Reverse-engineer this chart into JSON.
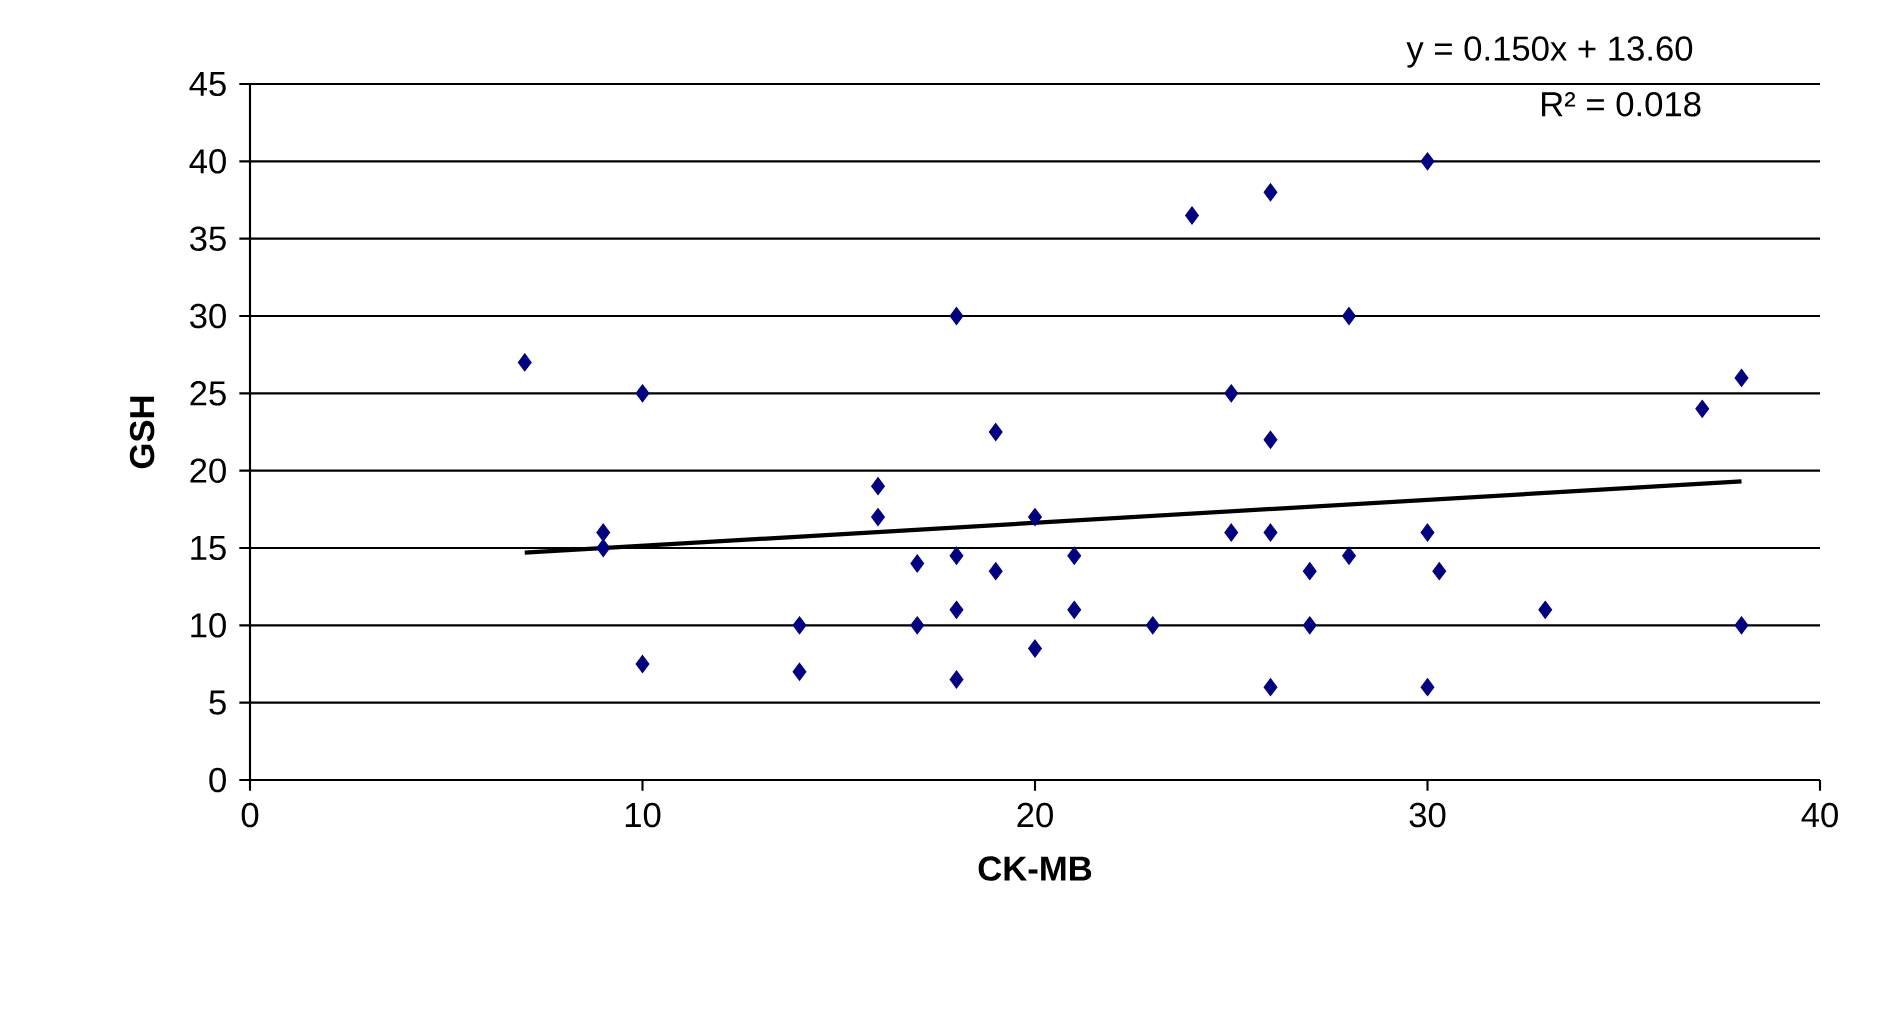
{
  "chart_data": {
    "type": "scatter",
    "xlabel": "CK-MB",
    "ylabel": "GSH",
    "xlim": [
      0,
      40
    ],
    "xticks": [
      0,
      10,
      20,
      30,
      40
    ],
    "ylim": [
      0,
      45
    ],
    "yticks": [
      0,
      5,
      10,
      15,
      20,
      25,
      30,
      35,
      40,
      45
    ],
    "grid": "y",
    "annotations": [
      "y = 0.150x + 13.60",
      "R² = 0.018"
    ],
    "series": [
      {
        "type": "scatter",
        "color": "#000080",
        "marker": "diamond",
        "x": [
          7,
          9,
          9,
          10,
          10,
          14,
          14,
          16,
          16,
          17,
          17,
          18,
          18,
          18,
          18,
          19,
          19,
          20,
          20,
          21,
          21,
          23,
          24,
          25,
          25,
          26,
          26,
          26,
          26,
          27,
          27,
          28,
          28,
          30,
          30,
          30,
          30.3,
          33,
          37,
          38,
          38
        ],
        "values": [
          27,
          16,
          15,
          25,
          7.5,
          10,
          7,
          19,
          17,
          14,
          10,
          30,
          14.5,
          11,
          6.5,
          22.5,
          13.5,
          17,
          8.5,
          14.5,
          11,
          10,
          36.5,
          25,
          16,
          38,
          22,
          16,
          6,
          13.5,
          10,
          30,
          14.5,
          40,
          16,
          6,
          13.5,
          11,
          24,
          26,
          10
        ]
      },
      {
        "type": "line",
        "color": "#000000",
        "marker": "none",
        "x": [
          7,
          38
        ],
        "values": [
          14.7,
          19.3
        ]
      }
    ]
  }
}
